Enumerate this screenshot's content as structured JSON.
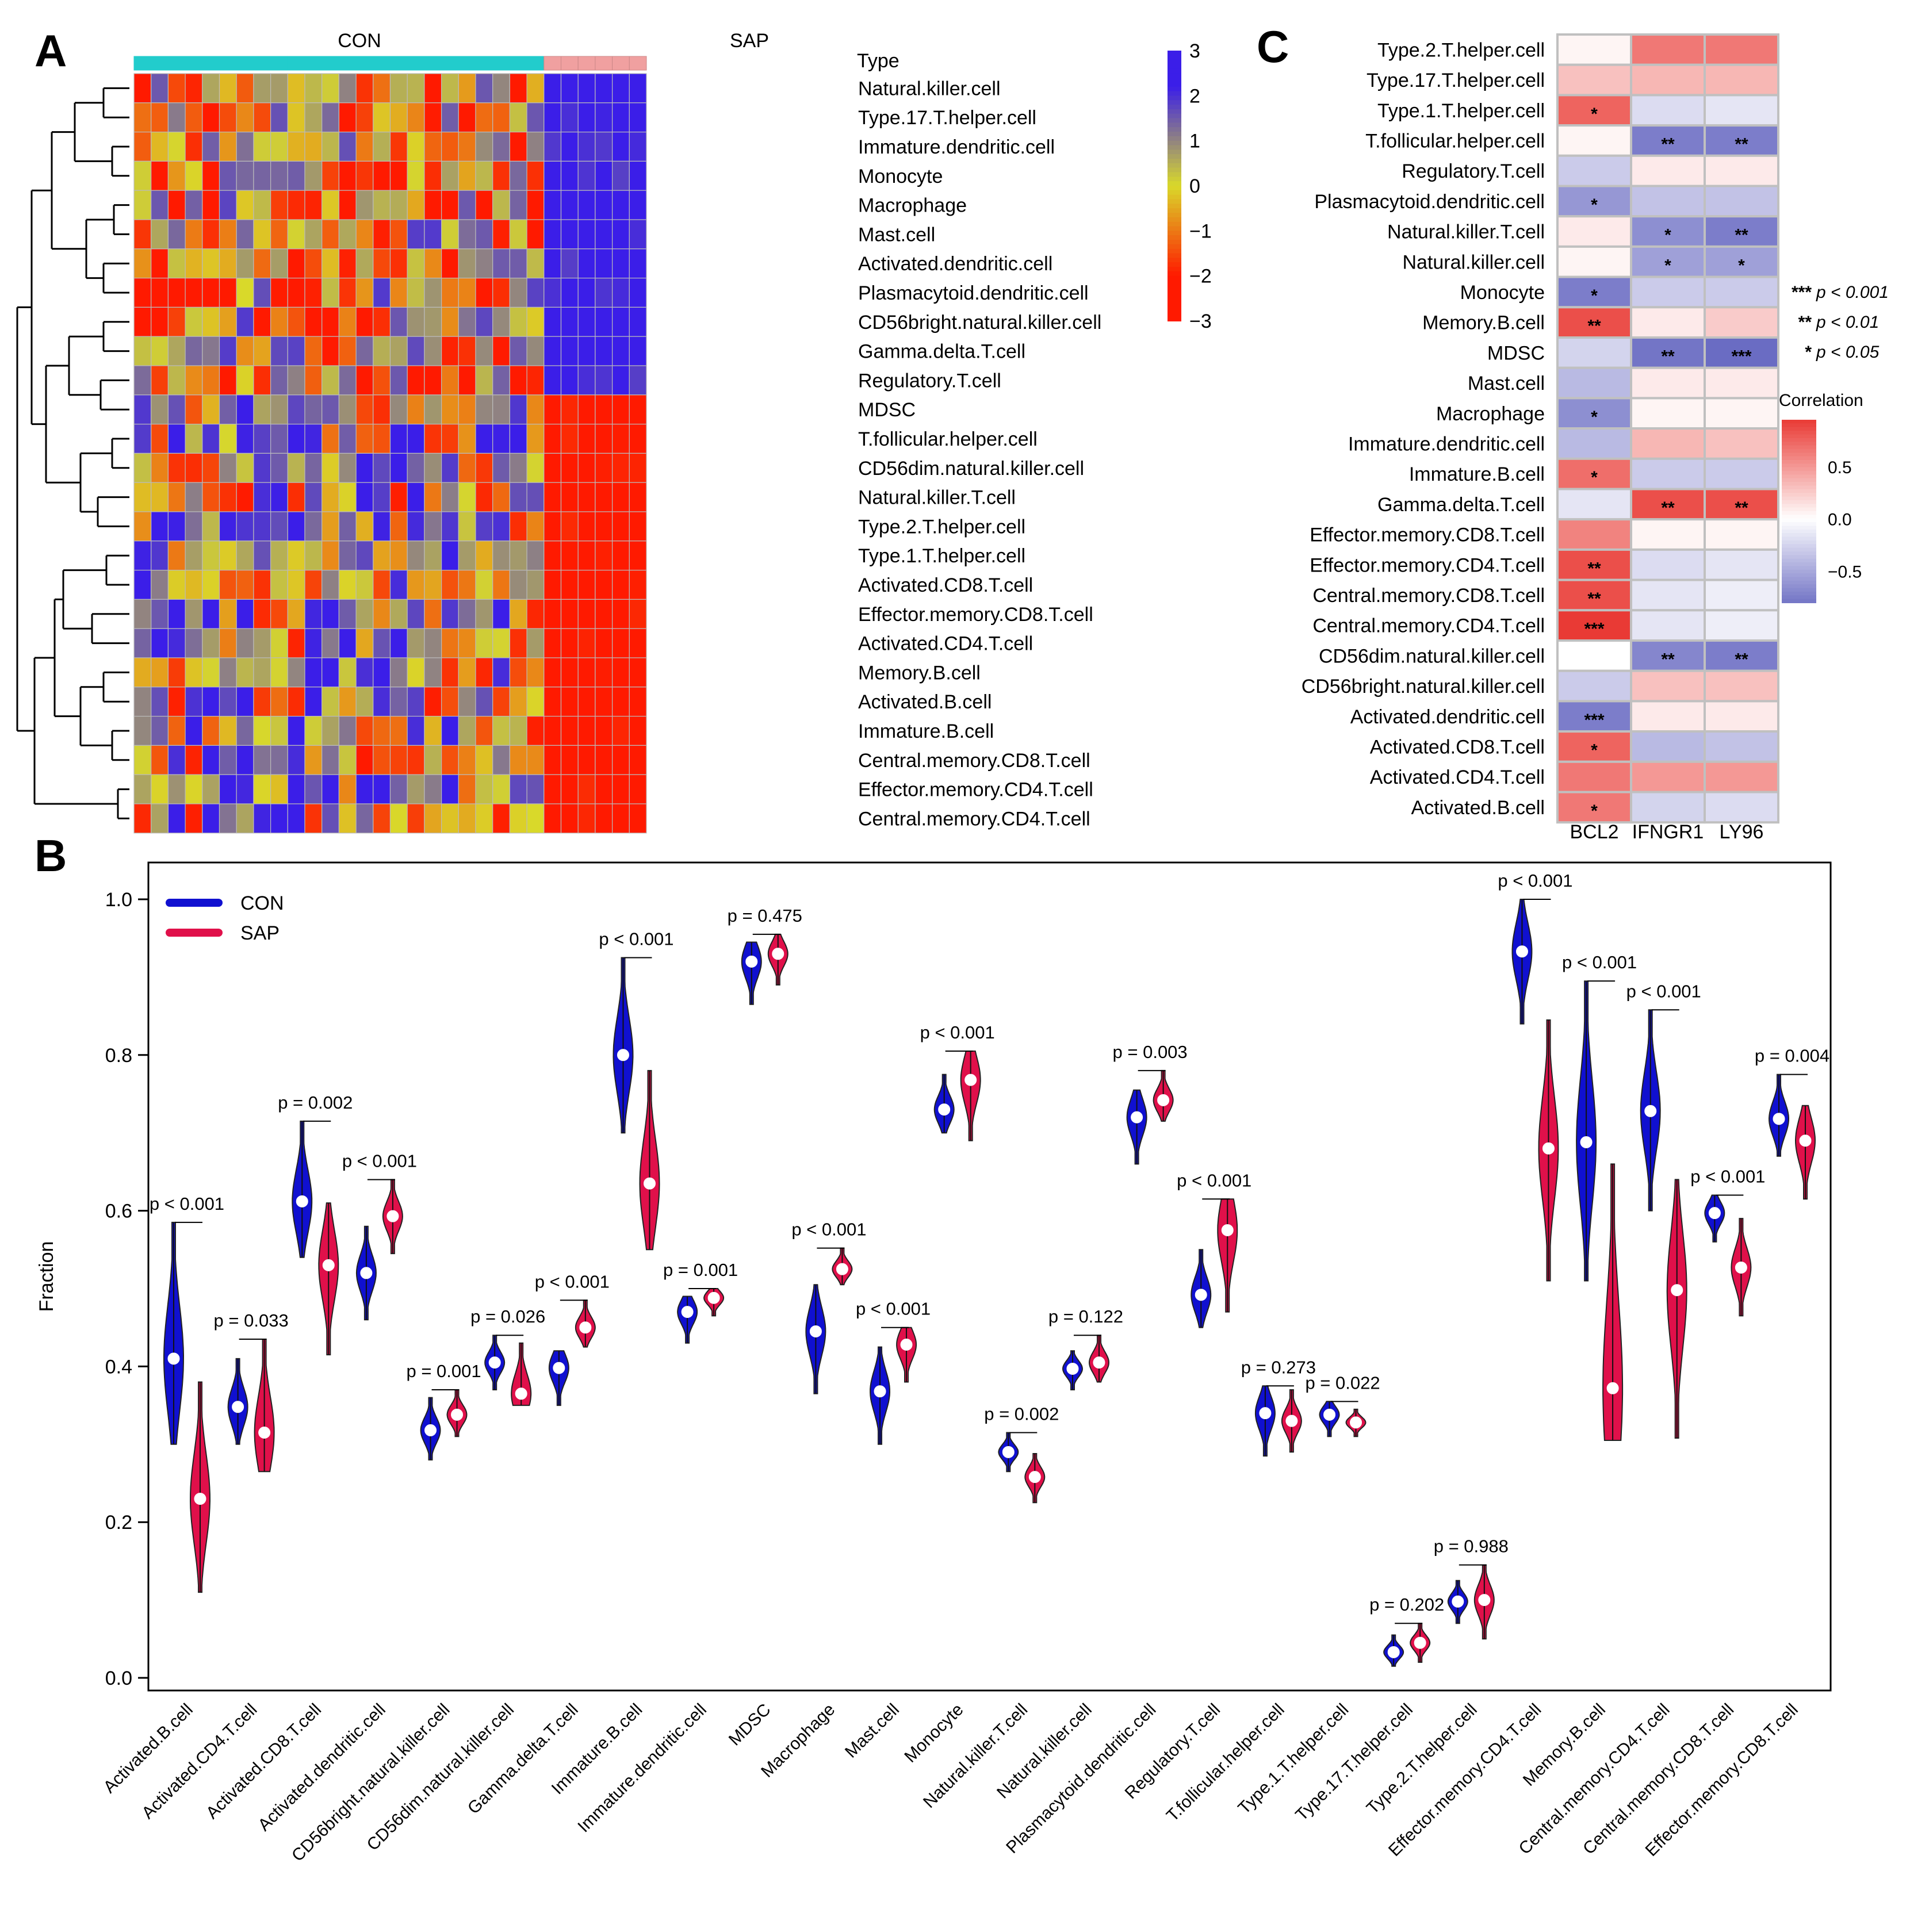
{
  "panels": {
    "a": "A",
    "b": "B",
    "c": "C"
  },
  "heatmap": {
    "group_labels": [
      "CON",
      "SAP"
    ],
    "type_label": "Type",
    "n_con": 24,
    "n_sap": 6,
    "rows": [
      "Natural.killer.cell",
      "Type.17.T.helper.cell",
      "Immature.dendritic.cell",
      "Monocyte",
      "Macrophage",
      "Mast.cell",
      "Activated.dendritic.cell",
      "Plasmacytoid.dendritic.cell",
      "CD56bright.natural.killer.cell",
      "Gamma.delta.T.cell",
      "Regulatory.T.cell",
      "MDSC",
      "T.follicular.helper.cell",
      "CD56dim.natural.killer.cell",
      "Natural.killer.T.cell",
      "Type.2.T.helper.cell",
      "Type.1.T.helper.cell",
      "Activated.CD8.T.cell",
      "Effector.memory.CD8.T.cell",
      "Activated.CD4.T.cell",
      "Memory.B.cell",
      "Activated.B.cell",
      "Immature.B.cell",
      "Central.memory.CD8.T.cell",
      "Effector.memory.CD4.T.cell",
      "Central.memory.CD4.T.cell"
    ],
    "colorbar_ticks": [
      "3",
      "2",
      "1",
      "0",
      "−1",
      "−2",
      "−3"
    ],
    "colors": {
      "high": "#3b1ee8",
      "mid": "#d9d92a",
      "low": "#ff1a00",
      "con_bar": "#22cccc",
      "sap_bar": "#f0a0a0"
    }
  },
  "correlation": {
    "rows": [
      "Type.2.T.helper.cell",
      "Type.17.T.helper.cell",
      "Type.1.T.helper.cell",
      "T.follicular.helper.cell",
      "Regulatory.T.cell",
      "Plasmacytoid.dendritic.cell",
      "Natural.killer.T.cell",
      "Natural.killer.cell",
      "Monocyte",
      "Memory.B.cell",
      "MDSC",
      "Mast.cell",
      "Macrophage",
      "Immature.dendritic.cell",
      "Immature.B.cell",
      "Gamma.delta.T.cell",
      "Effector.memory.CD8.T.cell",
      "Effector.memory.CD4.T.cell",
      "Central.memory.CD8.T.cell",
      "Central.memory.CD4.T.cell",
      "CD56dim.natural.killer.cell",
      "CD56bright.natural.killer.cell",
      "Activated.dendritic.cell",
      "Activated.CD8.T.cell",
      "Activated.CD4.T.cell",
      "Activated.B.cell"
    ],
    "cols": [
      "BCL2",
      "IFNGR1",
      "LY96"
    ],
    "values": [
      [
        0.05,
        0.65,
        0.65
      ],
      [
        0.3,
        0.35,
        0.35
      ],
      [
        0.75,
        -0.2,
        -0.15
      ],
      [
        0.05,
        -0.75,
        -0.75
      ],
      [
        -0.3,
        0.1,
        0.1
      ],
      [
        -0.6,
        -0.35,
        -0.35
      ],
      [
        0.1,
        -0.65,
        -0.75
      ],
      [
        0.05,
        -0.55,
        -0.55
      ],
      [
        -0.75,
        -0.3,
        -0.3
      ],
      [
        0.85,
        0.1,
        0.25
      ],
      [
        -0.25,
        -0.8,
        -0.85
      ],
      [
        -0.4,
        0.1,
        0.1
      ],
      [
        -0.65,
        0.05,
        0.05
      ],
      [
        -0.4,
        0.35,
        0.3
      ],
      [
        0.7,
        -0.3,
        -0.3
      ],
      [
        -0.15,
        0.85,
        0.85
      ],
      [
        0.6,
        0.05,
        0.05
      ],
      [
        0.85,
        -0.2,
        -0.15
      ],
      [
        0.85,
        -0.15,
        -0.1
      ],
      [
        0.95,
        -0.15,
        -0.1
      ],
      [
        0.0,
        -0.7,
        -0.75
      ],
      [
        -0.3,
        0.3,
        0.3
      ],
      [
        -0.75,
        0.1,
        0.1
      ],
      [
        0.75,
        -0.4,
        -0.35
      ],
      [
        0.65,
        0.5,
        0.5
      ],
      [
        0.65,
        -0.25,
        -0.2
      ]
    ],
    "stars": [
      [
        "",
        "",
        ""
      ],
      [
        "",
        "",
        ""
      ],
      [
        "*",
        "",
        ""
      ],
      [
        "",
        "**",
        "**"
      ],
      [
        "",
        "",
        ""
      ],
      [
        "*",
        "",
        ""
      ],
      [
        "",
        "*",
        "**"
      ],
      [
        "",
        "*",
        "*"
      ],
      [
        "*",
        "",
        ""
      ],
      [
        "**",
        "",
        ""
      ],
      [
        "",
        "**",
        "***"
      ],
      [
        "",
        "",
        ""
      ],
      [
        "*",
        "",
        ""
      ],
      [
        "",
        "",
        ""
      ],
      [
        "*",
        "",
        ""
      ],
      [
        "",
        "**",
        "**"
      ],
      [
        "",
        "",
        ""
      ],
      [
        "**",
        "",
        ""
      ],
      [
        "**",
        "",
        ""
      ],
      [
        "***",
        "",
        ""
      ],
      [
        "",
        "**",
        "**"
      ],
      [
        "",
        "",
        ""
      ],
      [
        "***",
        "",
        ""
      ],
      [
        "*",
        "",
        ""
      ],
      [
        "",
        "",
        ""
      ],
      [
        "*",
        "",
        ""
      ]
    ],
    "legend_title": "Correlation",
    "legend_ticks": [
      "0.5",
      "0.0",
      "−0.5"
    ],
    "sig_legend": [
      {
        "stars": "***",
        "text": "p < 0.001"
      },
      {
        "stars": "**",
        "text": "p < 0.01"
      },
      {
        "stars": "*",
        "text": "p < 0.05"
      }
    ],
    "colors": {
      "pos": "#e8302a",
      "zero": "#ffffff",
      "neg": "#5052b8"
    }
  },
  "chart_data": {
    "type": "violin",
    "ylabel": "Fraction",
    "ylim": [
      0.0,
      1.0
    ],
    "yticks": [
      "0.0",
      "0.2",
      "0.4",
      "0.6",
      "0.8",
      "1.0"
    ],
    "legend": [
      {
        "name": "CON",
        "color": "#1010d0"
      },
      {
        "name": "SAP",
        "color": "#e0104a"
      }
    ],
    "categories": [
      "Activated.B.cell",
      "Activated.CD4.T.cell",
      "Activated.CD8.T.cell",
      "Activated.dendritic.cell",
      "CD56bright.natural.killer.cell",
      "CD56dim.natural.killer.cell",
      "Gamma.delta.T.cell",
      "Immature.B.cell",
      "Immature.dendritic.cell",
      "MDSC",
      "Macrophage",
      "Mast.cell",
      "Monocyte",
      "Natural.killer.T.cell",
      "Natural.killer.cell",
      "Plasmacytoid.dendritic.cell",
      "Regulatory.T.cell",
      "T.follicular.helper.cell",
      "Type.1.T.helper.cell",
      "Type.17.T.helper.cell",
      "Type.2.T.helper.cell",
      "Effector.memory.CD4.T.cell",
      "Memory.B.cell",
      "Central.memory.CD4.T.cell",
      "Central.memory.CD8.T.cell",
      "Effector.memory.CD8.T.cell"
    ],
    "p_values": [
      "p < 0.001",
      "p = 0.033",
      "p = 0.002",
      "p < 0.001",
      "p = 0.001",
      "p = 0.026",
      "p < 0.001",
      "p < 0.001",
      "p = 0.001",
      "p = 0.475",
      "p < 0.001",
      "p < 0.001",
      "p < 0.001",
      "p = 0.002",
      "p = 0.122",
      "p = 0.003",
      "p < 0.001",
      "p = 0.273",
      "p = 0.022",
      "p = 0.202",
      "p = 0.988",
      "p < 0.001",
      "p < 0.001",
      "p < 0.001",
      "p < 0.001",
      "p = 0.004"
    ],
    "series": [
      {
        "name": "CON",
        "median": [
          0.41,
          0.348,
          0.612,
          0.52,
          0.318,
          0.405,
          0.398,
          0.8,
          0.47,
          0.92,
          0.445,
          0.368,
          0.73,
          0.29,
          0.397,
          0.72,
          0.492,
          0.34,
          0.338,
          0.033,
          0.098,
          0.933,
          0.688,
          0.728,
          0.597,
          0.718
        ],
        "min": [
          0.3,
          0.3,
          0.54,
          0.46,
          0.28,
          0.37,
          0.35,
          0.7,
          0.43,
          0.865,
          0.365,
          0.3,
          0.7,
          0.265,
          0.37,
          0.66,
          0.45,
          0.285,
          0.31,
          0.015,
          0.07,
          0.84,
          0.51,
          0.6,
          0.56,
          0.67
        ],
        "max": [
          0.585,
          0.41,
          0.715,
          0.58,
          0.36,
          0.44,
          0.42,
          0.925,
          0.49,
          0.945,
          0.505,
          0.425,
          0.775,
          0.315,
          0.42,
          0.755,
          0.55,
          0.375,
          0.355,
          0.055,
          0.125,
          1.0,
          0.895,
          0.858,
          0.62,
          0.775
        ]
      },
      {
        "name": "SAP",
        "median": [
          0.23,
          0.315,
          0.53,
          0.593,
          0.338,
          0.365,
          0.45,
          0.635,
          0.488,
          0.93,
          0.525,
          0.428,
          0.768,
          0.258,
          0.405,
          0.742,
          0.575,
          0.33,
          0.328,
          0.045,
          0.1,
          0.68,
          0.372,
          0.498,
          0.527,
          0.69
        ],
        "min": [
          0.11,
          0.265,
          0.415,
          0.545,
          0.31,
          0.35,
          0.425,
          0.55,
          0.465,
          0.89,
          0.505,
          0.38,
          0.69,
          0.225,
          0.38,
          0.715,
          0.47,
          0.29,
          0.31,
          0.02,
          0.05,
          0.51,
          0.305,
          0.308,
          0.465,
          0.615
        ],
        "max": [
          0.38,
          0.435,
          0.61,
          0.64,
          0.37,
          0.43,
          0.485,
          0.78,
          0.5,
          0.955,
          0.552,
          0.45,
          0.805,
          0.288,
          0.44,
          0.78,
          0.615,
          0.37,
          0.345,
          0.07,
          0.145,
          0.845,
          0.66,
          0.64,
          0.59,
          0.735
        ]
      }
    ]
  }
}
